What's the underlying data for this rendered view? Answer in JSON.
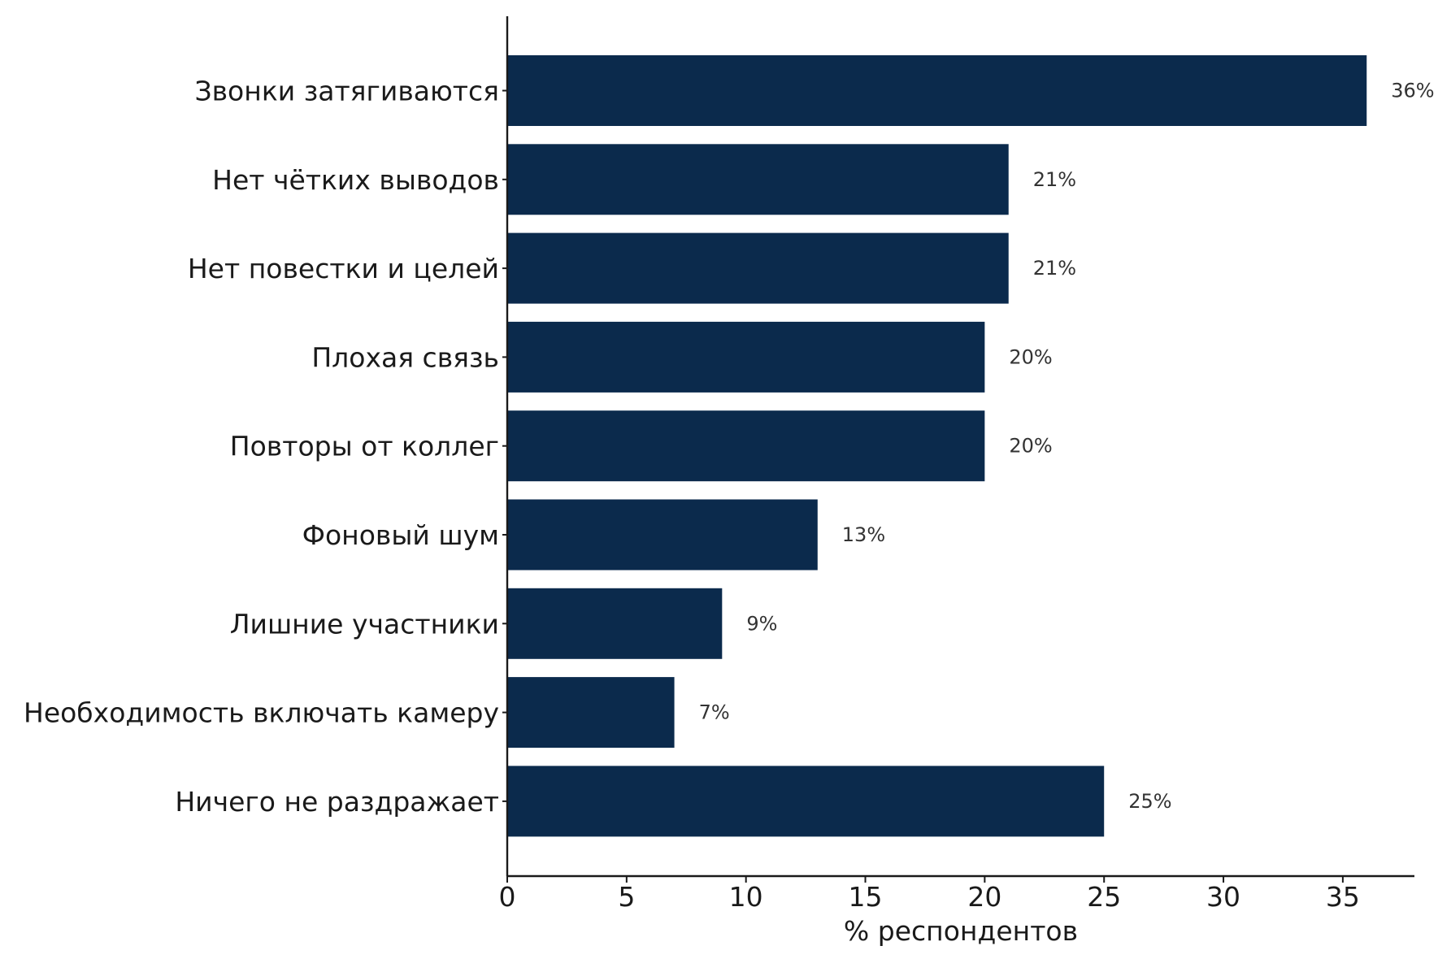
{
  "chart_data": {
    "type": "bar",
    "orientation": "horizontal",
    "categories": [
      "Звонки затягиваются",
      "Нет чётких выводов",
      "Нет повестки и целей",
      "Плохая связь",
      "Повторы от коллег",
      "Фоновый шум",
      "Лишние участники",
      "Необходимость включать камеру",
      "Ничего не раздражает"
    ],
    "values": [
      36,
      21,
      21,
      20,
      20,
      13,
      9,
      7,
      25
    ],
    "value_labels": [
      "36%",
      "21%",
      "21%",
      "20%",
      "20%",
      "13%",
      "9%",
      "7%",
      "25%"
    ],
    "title": "",
    "xlabel": "% респондентов",
    "ylabel": "",
    "xlim": [
      0,
      38
    ],
    "xticks": [
      0,
      5,
      10,
      15,
      20,
      25,
      30,
      35
    ],
    "xtick_labels": [
      "0",
      "5",
      "10",
      "15",
      "20",
      "25",
      "30",
      "35"
    ],
    "grid": false,
    "legend": "none",
    "bar_color": "#0b2a4c"
  }
}
